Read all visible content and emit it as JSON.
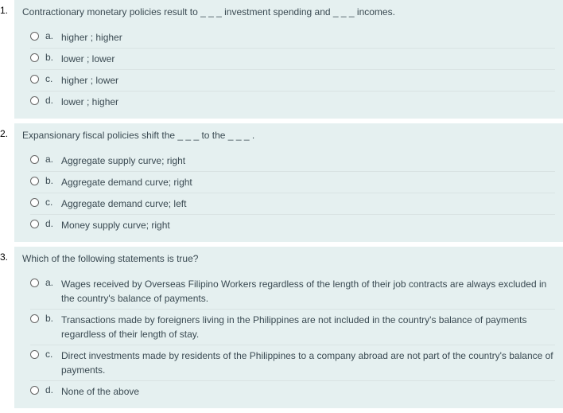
{
  "colors": {
    "panel_bg": "#e5f0f0",
    "text": "#3a4a52",
    "radio_border": "#666666",
    "page_bg": "#ffffff"
  },
  "questions": [
    {
      "number": "1.",
      "text": "Contractionary monetary policies result to _ _ _ investment spending and _ _ _ incomes.",
      "options": [
        {
          "letter": "a.",
          "text": "higher ; higher"
        },
        {
          "letter": "b.",
          "text": "lower ; lower"
        },
        {
          "letter": "c.",
          "text": "higher ; lower"
        },
        {
          "letter": "d.",
          "text": "lower ; higher"
        }
      ]
    },
    {
      "number": "2.",
      "text": "Expansionary fiscal policies shift the _ _ _ to the _ _ _ .",
      "options": [
        {
          "letter": "a.",
          "text": "Aggregate supply curve; right"
        },
        {
          "letter": "b.",
          "text": "Aggregate demand curve; right"
        },
        {
          "letter": "c.",
          "text": "Aggregate demand curve; left"
        },
        {
          "letter": "d.",
          "text": "Money supply curve; right"
        }
      ]
    },
    {
      "number": "3.",
      "text": "Which of the following statements is true?",
      "options": [
        {
          "letter": "a.",
          "text": "Wages received by Overseas Filipino Workers regardless of the length of their job contracts are always excluded in the country's balance of payments."
        },
        {
          "letter": "b.",
          "text": "Transactions made by foreigners living in the Philippines are not included in the country's balance of payments regardless of their length of stay."
        },
        {
          "letter": "c.",
          "text": "Direct investments made by residents of the Philippines to a company abroad are not part of the country's balance of payments."
        },
        {
          "letter": "d.",
          "text": "None of the above"
        }
      ]
    }
  ]
}
